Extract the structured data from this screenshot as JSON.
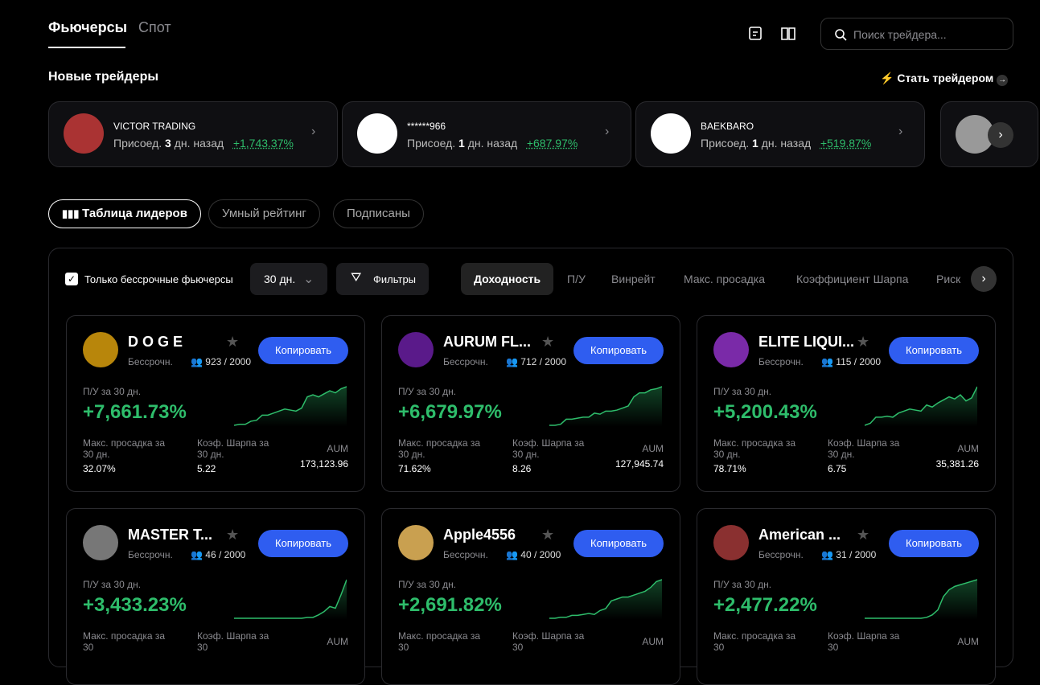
{
  "header": {
    "tabs": [
      "Фьючерсы",
      "Спот"
    ],
    "search_placeholder": "Поиск трейдера..."
  },
  "new_traders": {
    "title": "Новые трейдеры",
    "become": "Стать трейдером",
    "items": [
      {
        "name": "VICTOR TRADING",
        "joined": "Присоед.",
        "days": "3",
        "days_suffix": "дн. назад",
        "pnl": "+1,743.37%"
      },
      {
        "name": "******966",
        "joined": "Присоед.",
        "days": "1",
        "days_suffix": "дн. назад",
        "pnl": "+687.97%"
      },
      {
        "name": "BAEKBARO",
        "joined": "Присоед.",
        "days": "1",
        "days_suffix": "дн. назад",
        "pnl": "+519.87%"
      }
    ]
  },
  "tabs": [
    "Таблица лидеров",
    "Умный рейтинг",
    "Подписаны"
  ],
  "toolbar": {
    "perpetual_only": "Только бессрочные фьючерсы",
    "period": "30 дн.",
    "filters": "Фильтры",
    "sort_tabs": [
      "Доходность",
      "П/У",
      "Винрейт",
      "Макс. просадка",
      "Коэффициент Шарпа",
      "Риск"
    ]
  },
  "cards": [
    {
      "name": "D O G E",
      "type": "Бессрочн.",
      "followers": "923 / 2000",
      "copy": "Копировать",
      "pnl_label": "П/У за 30 дн.",
      "pnl": "+7,661.73%",
      "dd_label": "Макс. просадка за 30 дн.",
      "dd": "32.07%",
      "sharpe_label": "Коэф. Шарпа за 30 дн.",
      "sharpe": "5.22",
      "aum_label": "AUM",
      "aum": "173,123.96",
      "spark": [
        2,
        3,
        3,
        6,
        7,
        12,
        12,
        14,
        16,
        18,
        17,
        16,
        19,
        30,
        32,
        30,
        33,
        36,
        34,
        38,
        40
      ]
    },
    {
      "name": "AURUM FL...",
      "type": "Бессрочн.",
      "followers": "712 / 2000",
      "copy": "Копировать",
      "pnl_label": "П/У за 30 дн.",
      "pnl": "+6,679.97%",
      "dd_label": "Макс. просадка за 30 дн.",
      "dd": "71.62%",
      "sharpe_label": "Коэф. Шарпа за 30 дн.",
      "sharpe": "8.26",
      "aum_label": "AUM",
      "aum": "127,945.74",
      "spark": [
        2,
        2,
        3,
        8,
        8,
        9,
        10,
        10,
        14,
        13,
        16,
        16,
        17,
        19,
        21,
        30,
        34,
        34,
        37,
        38,
        40
      ]
    },
    {
      "name": "ELITE LIQUI...",
      "type": "Бессрочн.",
      "followers": "115 / 2000",
      "copy": "Копировать",
      "pnl_label": "П/У за 30 дн.",
      "pnl": "+5,200.43%",
      "dd_label": "Макс. просадка за 30 дн.",
      "dd": "78.71%",
      "sharpe_label": "Коэф. Шарпа за 30 дн.",
      "sharpe": "6.75",
      "aum_label": "AUM",
      "aum": "35,381.26",
      "spark": [
        2,
        4,
        10,
        10,
        11,
        10,
        14,
        16,
        18,
        17,
        16,
        22,
        20,
        24,
        27,
        30,
        28,
        32,
        26,
        29,
        40
      ]
    },
    {
      "name": "MASTER T...",
      "type": "Бессрочн.",
      "followers": "46 / 2000",
      "copy": "Копировать",
      "pnl_label": "П/У за 30 дн.",
      "pnl": "+3,433.23%",
      "dd_label": "Макс. просадка за 30",
      "dd": "",
      "sharpe_label": "Коэф. Шарпа за 30",
      "sharpe": "",
      "aum_label": "AUM",
      "aum": "",
      "spark": [
        2,
        2,
        2,
        2,
        2,
        2,
        2,
        2,
        2,
        2,
        2,
        2,
        2,
        3,
        3,
        6,
        10,
        16,
        14,
        30,
        48
      ]
    },
    {
      "name": "Apple4556",
      "type": "Бессрочн.",
      "followers": "40 / 2000",
      "copy": "Копировать",
      "pnl_label": "П/У за 30 дн.",
      "pnl": "+2,691.82%",
      "dd_label": "Макс. просадка за 30",
      "dd": "",
      "sharpe_label": "Коэф. Шарпа за 30",
      "sharpe": "",
      "aum_label": "AUM",
      "aum": "",
      "spark": [
        2,
        2,
        3,
        3,
        5,
        5,
        6,
        7,
        6,
        10,
        12,
        20,
        22,
        24,
        24,
        26,
        28,
        30,
        34,
        40,
        42
      ]
    },
    {
      "name": "American ...",
      "type": "Бессрочн.",
      "followers": "31 / 2000",
      "copy": "Копировать",
      "pnl_label": "П/У за 30 дн.",
      "pnl": "+2,477.22%",
      "dd_label": "Макс. просадка за 30",
      "dd": "",
      "sharpe_label": "Коэф. Шарпа за 30",
      "sharpe": "",
      "aum_label": "AUM",
      "aum": "",
      "spark": [
        2,
        2,
        2,
        2,
        2,
        2,
        2,
        2,
        2,
        2,
        2,
        3,
        6,
        12,
        28,
        36,
        40,
        42,
        44,
        46,
        48
      ]
    }
  ]
}
